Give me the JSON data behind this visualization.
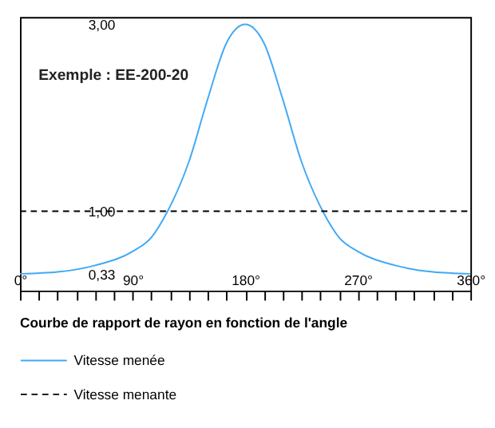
{
  "chart_data": {
    "type": "line",
    "title": "Courbe de rapport de rayon en fonction de l'angle",
    "annotations": [
      "Exemple : EE-200-20"
    ],
    "series": [
      {
        "name": "Vitesse menée",
        "color": "#3fa9f5",
        "line_style": "solid",
        "x": [
          0,
          30,
          60,
          90,
          105,
          118,
          135,
          150,
          165,
          180,
          195,
          210,
          225,
          242,
          255,
          270,
          300,
          330,
          360
        ],
        "values": [
          0.33,
          0.35,
          0.42,
          0.57,
          0.72,
          1.0,
          1.53,
          2.2,
          2.8,
          3.0,
          2.8,
          2.2,
          1.53,
          1.0,
          0.72,
          0.57,
          0.42,
          0.35,
          0.33
        ]
      },
      {
        "name": "Vitesse menante",
        "color": "#000000",
        "line_style": "dashed",
        "x": [
          0,
          360
        ],
        "values": [
          1.0,
          1.0
        ]
      }
    ],
    "xlim": [
      0,
      360
    ],
    "xticks": [
      {
        "value": 0,
        "label": "0°"
      },
      {
        "value": 15,
        "label": null
      },
      {
        "value": 30,
        "label": null
      },
      {
        "value": 45,
        "label": null
      },
      {
        "value": 60,
        "label": null
      },
      {
        "value": 75,
        "label": null
      },
      {
        "value": 90,
        "label": "90°"
      },
      {
        "value": 105,
        "label": null
      },
      {
        "value": 120,
        "label": null
      },
      {
        "value": 135,
        "label": null
      },
      {
        "value": 150,
        "label": null
      },
      {
        "value": 165,
        "label": null
      },
      {
        "value": 180,
        "label": "180°"
      },
      {
        "value": 195,
        "label": null
      },
      {
        "value": 210,
        "label": null
      },
      {
        "value": 225,
        "label": null
      },
      {
        "value": 240,
        "label": null
      },
      {
        "value": 255,
        "label": null
      },
      {
        "value": 270,
        "label": "270°"
      },
      {
        "value": 285,
        "label": null
      },
      {
        "value": 300,
        "label": null
      },
      {
        "value": 315,
        "label": null
      },
      {
        "value": 330,
        "label": null
      },
      {
        "value": 345,
        "label": null
      },
      {
        "value": 360,
        "label": "360°"
      }
    ],
    "ylim": [
      0.15,
      3.08
    ],
    "yticks": [
      {
        "value": 0.33,
        "label": "0,33"
      },
      {
        "value": 1.0,
        "label": "1,00"
      },
      {
        "value": 3.0,
        "label": "3,00"
      }
    ],
    "grid": false,
    "legend": "bottom",
    "marker": "none"
  }
}
